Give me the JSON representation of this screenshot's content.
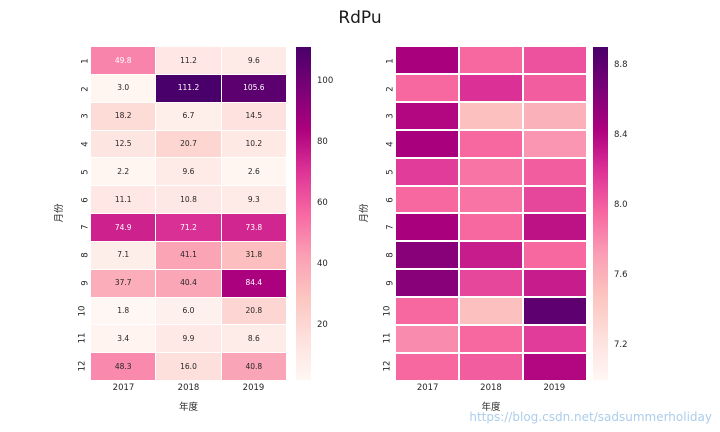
{
  "title": "RdPu",
  "watermark": "https://blog.csdn.net/sadsummerholiday",
  "chart_data": [
    {
      "type": "heatmap",
      "colormap": "RdPu",
      "xlabel": "年度",
      "ylabel": "月份",
      "x": [
        "2017",
        "2018",
        "2019"
      ],
      "y": [
        "1",
        "2",
        "3",
        "4",
        "5",
        "6",
        "7",
        "8",
        "9",
        "10",
        "11",
        "12"
      ],
      "values": [
        [
          49.8,
          11.2,
          9.6
        ],
        [
          3.0,
          111.2,
          105.6
        ],
        [
          18.2,
          6.7,
          14.5
        ],
        [
          12.5,
          20.7,
          10.2
        ],
        [
          2.2,
          9.6,
          2.6
        ],
        [
          11.1,
          10.8,
          9.3
        ],
        [
          74.9,
          71.2,
          73.8
        ],
        [
          7.1,
          41.1,
          31.8
        ],
        [
          37.7,
          40.4,
          84.4
        ],
        [
          1.8,
          6.0,
          20.8
        ],
        [
          3.4,
          9.9,
          8.6
        ],
        [
          48.3,
          16.0,
          40.8
        ]
      ],
      "vmin": 1.8,
      "vmax": 111.2,
      "annotated": true,
      "colorbar_ticks": [
        20,
        40,
        60,
        80,
        100
      ],
      "colorbar_tick_labels": [
        "20",
        "40",
        "60",
        "80",
        "100"
      ],
      "legend_position": "right",
      "grid": false
    },
    {
      "type": "heatmap",
      "colormap": "RdPu",
      "xlabel": "年度",
      "ylabel": "月份",
      "x": [
        "2017",
        "2018",
        "2019"
      ],
      "y": [
        "1",
        "2",
        "3",
        "4",
        "5",
        "6",
        "7",
        "8",
        "9",
        "10",
        "11",
        "12"
      ],
      "values": [
        [
          8.45,
          7.95,
          8.05
        ],
        [
          7.95,
          8.2,
          8.0
        ],
        [
          8.4,
          7.5,
          7.6
        ],
        [
          8.45,
          7.95,
          7.75
        ],
        [
          8.15,
          7.9,
          8.0
        ],
        [
          7.95,
          7.9,
          8.1
        ],
        [
          8.45,
          7.95,
          8.35
        ],
        [
          8.6,
          8.3,
          7.95
        ],
        [
          8.6,
          8.1,
          8.3
        ],
        [
          7.95,
          7.5,
          8.8
        ],
        [
          7.8,
          7.95,
          8.15
        ],
        [
          7.95,
          8.0,
          8.4
        ]
      ],
      "vmin": 7.0,
      "vmax": 8.9,
      "annotated": false,
      "colorbar_ticks": [
        7.2,
        7.6,
        8.0,
        8.4,
        8.8
      ],
      "colorbar_tick_labels": [
        "7.2",
        "7.6",
        "8.0",
        "8.4",
        "8.8"
      ],
      "legend_position": "right",
      "grid": false
    }
  ]
}
